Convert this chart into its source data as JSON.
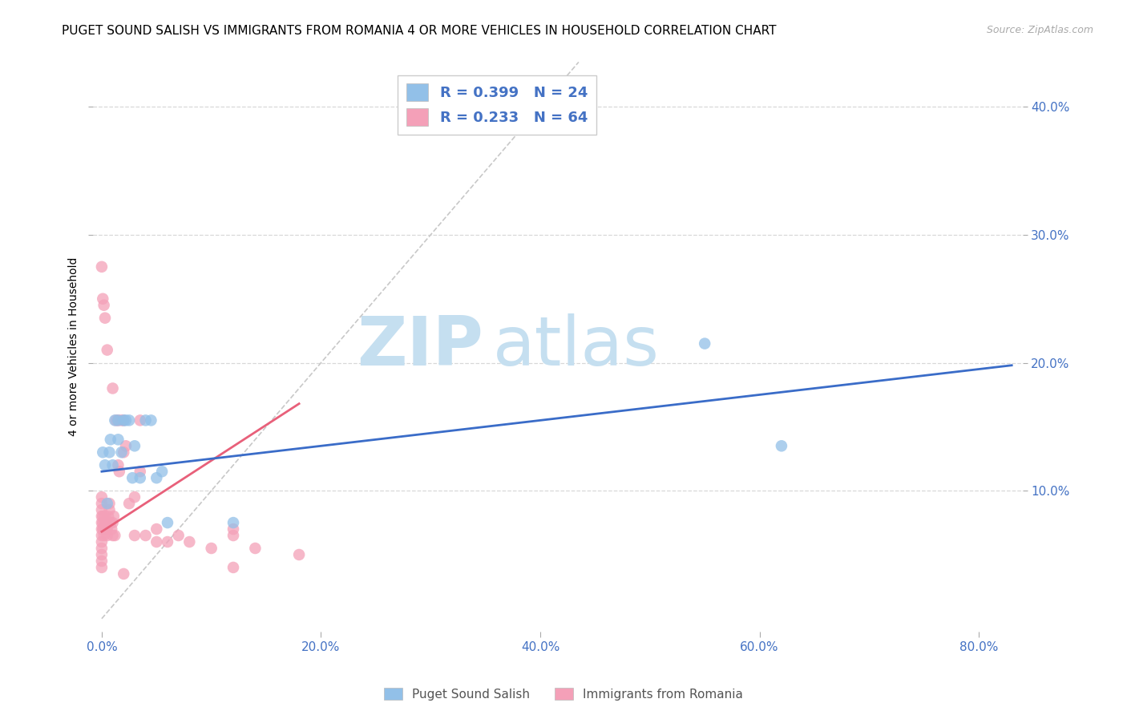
{
  "title": "PUGET SOUND SALISH VS IMMIGRANTS FROM ROMANIA 4 OR MORE VEHICLES IN HOUSEHOLD CORRELATION CHART",
  "source": "Source: ZipAtlas.com",
  "ylabel": "4 or more Vehicles in Household",
  "xtick_labels": [
    "0.0%",
    "20.0%",
    "40.0%",
    "60.0%",
    "80.0%"
  ],
  "xtick_values": [
    0.0,
    0.2,
    0.4,
    0.6,
    0.8
  ],
  "ytick_labels": [
    "10.0%",
    "20.0%",
    "30.0%",
    "40.0%"
  ],
  "ytick_values": [
    0.1,
    0.2,
    0.3,
    0.4
  ],
  "xlim": [
    -0.008,
    0.84
  ],
  "ylim": [
    -0.01,
    0.435
  ],
  "watermark_zip": "ZIP",
  "watermark_atlas": "atlas",
  "legend_label_blue": "R = 0.399   N = 24",
  "legend_label_pink": "R = 0.233   N = 64",
  "blue_scatter_x": [
    0.001,
    0.003,
    0.005,
    0.007,
    0.008,
    0.01,
    0.012,
    0.015,
    0.015,
    0.018,
    0.02,
    0.022,
    0.025,
    0.028,
    0.03,
    0.035,
    0.04,
    0.045,
    0.05,
    0.055,
    0.06,
    0.55,
    0.62,
    0.12
  ],
  "blue_scatter_y": [
    0.13,
    0.12,
    0.09,
    0.13,
    0.14,
    0.12,
    0.155,
    0.155,
    0.14,
    0.13,
    0.155,
    0.155,
    0.155,
    0.11,
    0.135,
    0.11,
    0.155,
    0.155,
    0.11,
    0.115,
    0.075,
    0.215,
    0.135,
    0.075
  ],
  "pink_scatter_x": [
    0.0,
    0.0,
    0.0,
    0.0,
    0.0,
    0.0,
    0.0,
    0.0,
    0.0,
    0.0,
    0.0,
    0.0,
    0.001,
    0.001,
    0.001,
    0.002,
    0.002,
    0.003,
    0.003,
    0.004,
    0.004,
    0.005,
    0.005,
    0.006,
    0.007,
    0.007,
    0.008,
    0.009,
    0.01,
    0.01,
    0.011,
    0.012,
    0.013,
    0.015,
    0.015,
    0.016,
    0.018,
    0.02,
    0.02,
    0.022,
    0.025,
    0.03,
    0.03,
    0.035,
    0.035,
    0.04,
    0.05,
    0.05,
    0.06,
    0.07,
    0.08,
    0.1,
    0.12,
    0.12,
    0.14,
    0.18
  ],
  "pink_scatter_y": [
    0.04,
    0.045,
    0.05,
    0.055,
    0.06,
    0.065,
    0.07,
    0.075,
    0.08,
    0.085,
    0.09,
    0.095,
    0.07,
    0.075,
    0.08,
    0.065,
    0.07,
    0.075,
    0.08,
    0.07,
    0.075,
    0.065,
    0.07,
    0.08,
    0.085,
    0.09,
    0.075,
    0.07,
    0.065,
    0.075,
    0.08,
    0.065,
    0.155,
    0.155,
    0.12,
    0.115,
    0.155,
    0.155,
    0.13,
    0.135,
    0.09,
    0.095,
    0.065,
    0.155,
    0.115,
    0.065,
    0.06,
    0.07,
    0.06,
    0.065,
    0.06,
    0.055,
    0.065,
    0.07,
    0.055,
    0.05
  ],
  "pink_outlier_x": [
    0.0,
    0.001,
    0.002,
    0.003,
    0.005,
    0.01,
    0.02,
    0.12
  ],
  "pink_outlier_y": [
    0.275,
    0.25,
    0.245,
    0.235,
    0.21,
    0.18,
    0.035,
    0.04
  ],
  "blue_line_x": [
    0.0,
    0.83
  ],
  "blue_line_y": [
    0.115,
    0.198
  ],
  "pink_line_x": [
    0.0,
    0.18
  ],
  "pink_line_y": [
    0.068,
    0.168
  ],
  "diag_line_x": [
    0.0,
    0.435
  ],
  "diag_line_y": [
    0.0,
    0.435
  ],
  "blue_color": "#92c0e8",
  "pink_color": "#f4a0b8",
  "blue_line_color": "#3a6cc8",
  "pink_line_color": "#e8607a",
  "diag_color": "#c8c8c8",
  "grid_color": "#d8d8d8",
  "background_color": "#ffffff",
  "title_fontsize": 11,
  "axis_label_fontsize": 10,
  "tick_fontsize": 11,
  "right_tick_color": "#4472c4",
  "bottom_tick_label_color": "#4472c4"
}
